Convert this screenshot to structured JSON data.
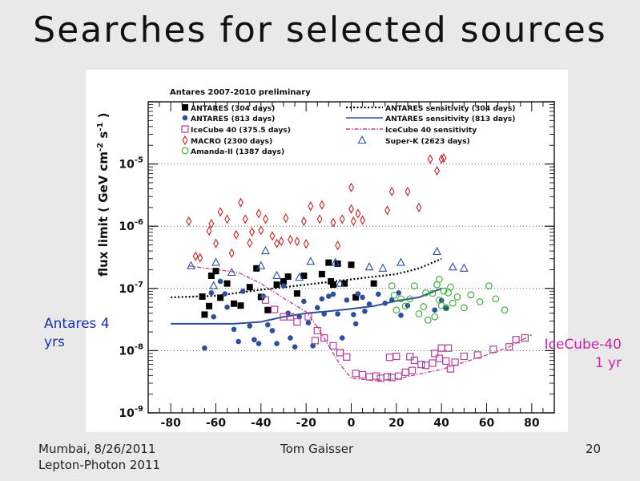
{
  "slide": {
    "title": "Searches for selected sources",
    "footer_left_line1": "Mumbai, 8/26/2011",
    "footer_left_line2": "Lepton-Photon 2011",
    "footer_center": "Tom Gaisser",
    "page_number": "20",
    "annotation_left_line1": "Antares 4",
    "annotation_left_line2": "yrs",
    "annotation_right_line1": "IceCube-40",
    "annotation_right_line2": "1 yr"
  },
  "chart_data": {
    "type": "scatter",
    "title": "Antares 2007-2010 preliminary",
    "ylabel": "flux limit ( GeV cm-2 s-1 )",
    "xlabel": "",
    "xlim": [
      -90,
      90
    ],
    "ylim": [
      1e-09,
      0.0001
    ],
    "yscale": "log",
    "x_ticks": [
      -80,
      -60,
      -40,
      -20,
      0,
      20,
      40,
      60,
      80
    ],
    "y_tick_labels": [
      "10-9",
      "10-8",
      "10-7",
      "10-6",
      "10-5"
    ],
    "grid": "horizontal dotted at decades",
    "legend_placement": "top",
    "legend": [
      {
        "label": "ANTARES (304 days)",
        "marker": "square",
        "color": "#000000"
      },
      {
        "label": "ANTARES (813 days)",
        "marker": "dot",
        "color": "#2d4f9c"
      },
      {
        "label": "IceCube 40 (375.5 days)",
        "marker": "open-square",
        "color": "#b5409a"
      },
      {
        "label": "MACRO (2300 days)",
        "marker": "open-diamond",
        "color": "#cc2222"
      },
      {
        "label": "Amanda-II (1387 days)",
        "marker": "open-circle",
        "color": "#33aa33"
      },
      {
        "label": "ANTARES sensitivity (304 days)",
        "marker": "dotted-line",
        "color": "#000000"
      },
      {
        "label": "ANTARES sensitivity (813 days)",
        "marker": "solid-line",
        "color": "#2d4f9c"
      },
      {
        "label": "IceCube 40 sensitivity",
        "marker": "dashdot-line",
        "color": "#b5409a"
      },
      {
        "label": "Super-K (2623 days)",
        "marker": "open-triangle",
        "color": "#2d4f9c"
      }
    ],
    "series": [
      {
        "name": "ANTARES (304 days)",
        "marker": "square",
        "color": "#000000",
        "points": [
          [
            -65,
            3.8e-08
          ],
          [
            -63,
            5.2e-08
          ],
          [
            -60,
            1.9e-07
          ],
          [
            -58,
            7.1e-08
          ],
          [
            -55,
            1.2e-07
          ],
          [
            -52,
            5.7e-08
          ],
          [
            -49,
            5.3e-08
          ],
          [
            -45,
            1.05e-07
          ],
          [
            -42,
            2.1e-07
          ],
          [
            -40,
            7.3e-08
          ],
          [
            -37,
            4.5e-08
          ],
          [
            -33,
            1.15e-07
          ],
          [
            -30,
            1.3e-07
          ],
          [
            -28,
            1.55e-07
          ],
          [
            -24,
            8.3e-08
          ],
          [
            -21,
            1.6e-07
          ],
          [
            -13,
            1.7e-07
          ],
          [
            -10,
            2.6e-07
          ],
          [
            -8,
            1.15e-07
          ],
          [
            -6,
            2.5e-07
          ],
          [
            -3,
            1.2e-07
          ],
          [
            0,
            2.4e-07
          ],
          [
            10,
            1.2e-07
          ],
          [
            -9,
            1.3e-07
          ],
          [
            -66,
            7.4e-08
          ],
          [
            -62,
            1.6e-07
          ],
          [
            2,
            7.2e-08
          ]
        ]
      },
      {
        "name": "ANTARES (813 days)",
        "marker": "dot",
        "color": "#2d4f9c",
        "points": [
          [
            -65,
            1.1e-08
          ],
          [
            -62,
            8.5e-08
          ],
          [
            -61,
            3.5e-08
          ],
          [
            -58,
            1.3e-07
          ],
          [
            -56,
            8.2e-08
          ],
          [
            -55,
            5e-08
          ],
          [
            -52,
            2.2e-08
          ],
          [
            -50,
            1.4e-08
          ],
          [
            -48,
            9e-08
          ],
          [
            -45,
            2.5e-08
          ],
          [
            -43,
            1.5e-08
          ],
          [
            -41,
            1.3e-08
          ],
          [
            -39,
            7.5e-08
          ],
          [
            -37,
            2.6e-08
          ],
          [
            -35,
            2.1e-08
          ],
          [
            -33,
            1.3e-08
          ],
          [
            -30,
            1.1e-07
          ],
          [
            -28,
            4e-08
          ],
          [
            -27,
            1.6e-08
          ],
          [
            -25,
            1.15e-08
          ],
          [
            -23,
            3.5e-08
          ],
          [
            -21,
            6.2e-08
          ],
          [
            -19,
            2.8e-08
          ],
          [
            -17,
            1.2e-08
          ],
          [
            -15,
            4.9e-08
          ],
          [
            -12,
            3.9e-08
          ],
          [
            -10,
            7.5e-08
          ],
          [
            -8,
            8.1e-08
          ],
          [
            -6,
            3.9e-08
          ],
          [
            -4,
            1.6e-08
          ],
          [
            -2,
            6.5e-08
          ],
          [
            1,
            3.8e-08
          ],
          [
            2,
            2.7e-08
          ],
          [
            5,
            7.2e-08
          ],
          [
            6,
            4.3e-08
          ],
          [
            8,
            5.6e-08
          ],
          [
            12,
            8.1e-08
          ],
          [
            15,
            5.8e-08
          ],
          [
            18,
            6.5e-08
          ],
          [
            21,
            8.5e-08
          ],
          [
            22,
            3.7e-08
          ],
          [
            25,
            5.3e-08
          ],
          [
            37,
            4.5e-08
          ],
          [
            40,
            6.4e-08
          ],
          [
            42,
            4.8e-08
          ],
          [
            -13,
            6.8e-08
          ],
          [
            3,
            8.2e-08
          ]
        ]
      },
      {
        "name": "IceCube 40 (375.5 days)",
        "marker": "open-square",
        "color": "#b5409a",
        "points": [
          [
            -38,
            6.5e-08
          ],
          [
            -34,
            4.6e-08
          ],
          [
            -30,
            3.5e-08
          ],
          [
            -27,
            3.5e-08
          ],
          [
            -24,
            2.9e-08
          ],
          [
            -19,
            3.5e-08
          ],
          [
            -15,
            2.1e-08
          ],
          [
            -12,
            1.6e-08
          ],
          [
            -8,
            1.2e-08
          ],
          [
            -5,
            9.3e-09
          ],
          [
            -2,
            7.9e-09
          ],
          [
            2,
            4.3e-09
          ],
          [
            5,
            4.1e-09
          ],
          [
            8,
            3.8e-09
          ],
          [
            11,
            3.9e-09
          ],
          [
            13,
            3.6e-09
          ],
          [
            16,
            3.8e-09
          ],
          [
            18,
            3.7e-09
          ],
          [
            21,
            3.9e-09
          ],
          [
            24,
            4.5e-09
          ],
          [
            27,
            4.8e-09
          ],
          [
            28,
            7e-09
          ],
          [
            33,
            5.8e-09
          ],
          [
            36,
            6.3e-09
          ],
          [
            37,
            9e-09
          ],
          [
            39,
            7.5e-09
          ],
          [
            40,
            1.1e-08
          ],
          [
            42,
            6.8e-09
          ],
          [
            43,
            1.1e-08
          ],
          [
            46,
            6.5e-09
          ],
          [
            50,
            8.1e-09
          ],
          [
            56,
            8.5e-09
          ],
          [
            63,
            1.05e-08
          ],
          [
            70,
            1.15e-08
          ],
          [
            73,
            1.5e-08
          ],
          [
            77,
            1.6e-08
          ],
          [
            17,
            7.8e-09
          ],
          [
            20,
            8.1e-09
          ],
          [
            26,
            8e-09
          ],
          [
            44,
            5.1e-09
          ],
          [
            31,
            6e-09
          ],
          [
            -16,
            1.45e-08
          ]
        ]
      },
      {
        "name": "MACRO (2300 days)",
        "marker": "open-diamond",
        "color": "#cc2222",
        "points": [
          [
            -72,
            1.2e-06
          ],
          [
            -69,
            3.3e-07
          ],
          [
            -67,
            3.1e-07
          ],
          [
            -63,
            8.4e-07
          ],
          [
            -62,
            1.1e-06
          ],
          [
            -60,
            5.3e-07
          ],
          [
            -58,
            1.7e-06
          ],
          [
            -55,
            1.3e-06
          ],
          [
            -53,
            3.7e-07
          ],
          [
            -51,
            7.3e-07
          ],
          [
            -49,
            2.4e-06
          ],
          [
            -47,
            1.3e-06
          ],
          [
            -45,
            5.4e-07
          ],
          [
            -44,
            8.1e-07
          ],
          [
            -41,
            1.6e-06
          ],
          [
            -40,
            8.6e-07
          ],
          [
            -38,
            1.3e-06
          ],
          [
            -35,
            7e-07
          ],
          [
            -33,
            5.3e-07
          ],
          [
            -31,
            5.7e-07
          ],
          [
            -29,
            1.35e-06
          ],
          [
            -27,
            6.1e-07
          ],
          [
            -24,
            5.7e-07
          ],
          [
            -21,
            1.2e-06
          ],
          [
            -20,
            5.2e-07
          ],
          [
            -18,
            2.1e-06
          ],
          [
            -14,
            1.3e-06
          ],
          [
            -13,
            2.2e-06
          ],
          [
            -8,
            1.15e-06
          ],
          [
            -6,
            4.9e-07
          ],
          [
            -4,
            1.3e-06
          ],
          [
            0,
            1.9e-06
          ],
          [
            0,
            4.2e-06
          ],
          [
            1,
            1.2e-06
          ],
          [
            3,
            1.6e-06
          ],
          [
            5,
            1.25e-06
          ],
          [
            16,
            1.8e-06
          ],
          [
            18,
            3.6e-06
          ],
          [
            25,
            3.6e-06
          ],
          [
            30,
            2e-06
          ],
          [
            35,
            1.2e-05
          ],
          [
            38,
            7.8e-06
          ],
          [
            40,
            1.2e-05
          ],
          [
            41,
            1.25e-05
          ]
        ]
      },
      {
        "name": "Amanda-II (1387 days)",
        "marker": "open-circle",
        "color": "#33aa33",
        "points": [
          [
            18,
            1.1e-07
          ],
          [
            20,
            4.5e-08
          ],
          [
            22,
            6.8e-08
          ],
          [
            24,
            5.2e-08
          ],
          [
            26,
            6.8e-08
          ],
          [
            28,
            1.1e-07
          ],
          [
            30,
            3.9e-08
          ],
          [
            32,
            5.1e-08
          ],
          [
            34,
            3.1e-08
          ],
          [
            36,
            8.3e-08
          ],
          [
            37,
            3.5e-08
          ],
          [
            38,
            1.15e-07
          ],
          [
            39,
            6.5e-08
          ],
          [
            40,
            5.3e-08
          ],
          [
            41,
            9.1e-08
          ],
          [
            42,
            4.9e-08
          ],
          [
            43,
            8.5e-08
          ],
          [
            44,
            1.05e-07
          ],
          [
            45,
            5.8e-08
          ],
          [
            47,
            7.3e-08
          ],
          [
            50,
            4.9e-08
          ],
          [
            53,
            7.9e-08
          ],
          [
            57,
            6.1e-08
          ],
          [
            61,
            1.1e-07
          ],
          [
            64,
            6.8e-08
          ],
          [
            68,
            4.5e-08
          ],
          [
            19,
            7.8e-08
          ],
          [
            33,
            8.5e-08
          ],
          [
            39,
            1.4e-07
          ]
        ]
      },
      {
        "name": "Super-K (2623 days)",
        "marker": "open-triangle",
        "color": "#2d4f9c",
        "points": [
          [
            -71,
            2.3e-07
          ],
          [
            -60,
            2.6e-07
          ],
          [
            -53,
            1.8e-07
          ],
          [
            -40,
            2.3e-07
          ],
          [
            -38,
            4e-07
          ],
          [
            -18,
            2.7e-07
          ],
          [
            -7,
            2.6e-07
          ],
          [
            8,
            2.2e-07
          ],
          [
            14,
            2.1e-07
          ],
          [
            22,
            2.6e-07
          ],
          [
            38,
            3.9e-07
          ],
          [
            45,
            2.2e-07
          ],
          [
            50,
            2.1e-07
          ],
          [
            -61,
            1.1e-07
          ],
          [
            -33,
            1.6e-07
          ],
          [
            -23,
            1.5e-07
          ],
          [
            -5,
            1.2e-07
          ]
        ]
      }
    ],
    "lines": [
      {
        "name": "ANTARES sensitivity (304 days)",
        "style": "dotted",
        "color": "#000000",
        "points": [
          [
            -80,
            7.2e-08
          ],
          [
            -60,
            7.6e-08
          ],
          [
            -40,
            9.5e-08
          ],
          [
            -20,
            1.15e-07
          ],
          [
            0,
            1.4e-07
          ],
          [
            20,
            1.7e-07
          ],
          [
            30,
            2.1e-07
          ],
          [
            40,
            3e-07
          ]
        ]
      },
      {
        "name": "ANTARES sensitivity (813 days)",
        "style": "solid",
        "color": "#2d4f9c",
        "points": [
          [
            -80,
            2.7e-08
          ],
          [
            -52,
            2.7e-08
          ],
          [
            -40,
            2.9e-08
          ],
          [
            -30,
            3.5e-08
          ],
          [
            -20,
            4e-08
          ],
          [
            -10,
            4.3e-08
          ],
          [
            0,
            4.7e-08
          ],
          [
            10,
            5.2e-08
          ],
          [
            20,
            6.3e-08
          ],
          [
            30,
            7.2e-08
          ],
          [
            40,
            1e-07
          ]
        ]
      },
      {
        "name": "IceCube 40 sensitivity",
        "style": "dash-dot",
        "color": "#b5409a",
        "points": [
          [
            -72,
            2.3e-07
          ],
          [
            -50,
            1.8e-07
          ],
          [
            -40,
            1.2e-07
          ],
          [
            -30,
            7e-08
          ],
          [
            -20,
            4.2e-08
          ],
          [
            -15,
            2.4e-08
          ],
          [
            -10,
            1.2e-08
          ],
          [
            -5,
            6e-09
          ],
          [
            0,
            3.6e-09
          ],
          [
            10,
            3.3e-09
          ],
          [
            20,
            3.5e-09
          ],
          [
            30,
            4.2e-09
          ],
          [
            40,
            5e-09
          ],
          [
            50,
            6.5e-09
          ],
          [
            60,
            8.5e-09
          ],
          [
            70,
            1.15e-08
          ],
          [
            80,
            1.8e-08
          ]
        ]
      }
    ]
  }
}
